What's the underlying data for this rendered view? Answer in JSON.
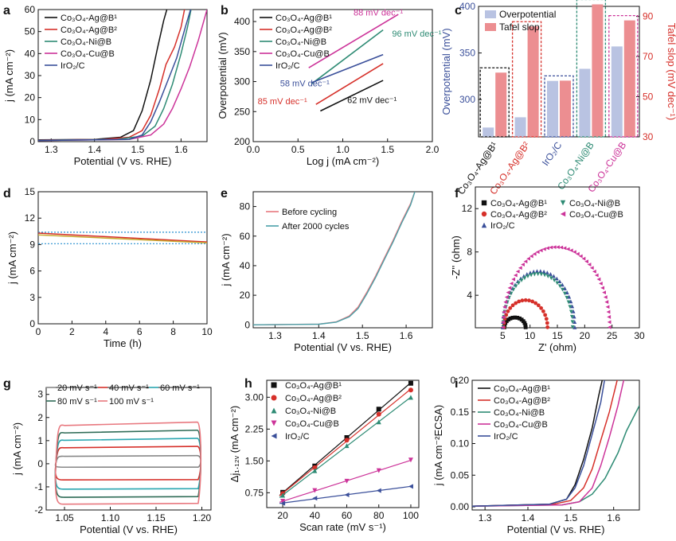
{
  "panel_letters": [
    "a",
    "b",
    "c",
    "d",
    "e",
    "f",
    "g",
    "h",
    "i"
  ],
  "chart_data": [
    {
      "panel": "a",
      "type": "line",
      "xlabel": "Potential (V vs. RHE)",
      "ylabel": "j (mA cm⁻²)",
      "xlim": [
        1.27,
        1.66
      ],
      "ylim": [
        0,
        60
      ],
      "xticks": [
        1.3,
        1.4,
        1.5,
        1.6
      ],
      "yticks": [
        0,
        10,
        20,
        30,
        40,
        50,
        60
      ],
      "legend": "top-left",
      "series": [
        {
          "name": "Co₃O₄-Ag@B¹",
          "color": "#111111",
          "points": [
            [
              1.27,
              0.8
            ],
            [
              1.4,
              1.0
            ],
            [
              1.46,
              2.0
            ],
            [
              1.49,
              5.0
            ],
            [
              1.51,
              14
            ],
            [
              1.53,
              28
            ],
            [
              1.545,
              42
            ],
            [
              1.56,
              55
            ],
            [
              1.57,
              62
            ]
          ]
        },
        {
          "name": "Co₃O₄-Ag@B²",
          "color": "#d6302a",
          "points": [
            [
              1.27,
              0.7
            ],
            [
              1.42,
              1.0
            ],
            [
              1.48,
              2.0
            ],
            [
              1.51,
              5.0
            ],
            [
              1.53,
              12
            ],
            [
              1.55,
              24
            ],
            [
              1.565,
              35
            ],
            [
              1.585,
              43
            ],
            [
              1.6,
              52
            ],
            [
              1.61,
              62
            ]
          ]
        },
        {
          "name": "Co₃O₄-Ni@B",
          "color": "#2e8b74",
          "points": [
            [
              1.27,
              0.6
            ],
            [
              1.45,
              1.0
            ],
            [
              1.51,
              2.5
            ],
            [
              1.54,
              7.0
            ],
            [
              1.56,
              15
            ],
            [
              1.58,
              26
            ],
            [
              1.6,
              40
            ],
            [
              1.615,
              52
            ],
            [
              1.625,
              62
            ]
          ]
        },
        {
          "name": "Co₃O₄-Cu@B",
          "color": "#cc3399",
          "points": [
            [
              1.27,
              0.5
            ],
            [
              1.48,
              1.0
            ],
            [
              1.53,
              3.0
            ],
            [
              1.56,
              8.0
            ],
            [
              1.58,
              15
            ],
            [
              1.6,
              24
            ],
            [
              1.62,
              34
            ],
            [
              1.64,
              46
            ],
            [
              1.66,
              60
            ]
          ]
        },
        {
          "name": "IrO₂/C",
          "color": "#3a4f9a",
          "points": [
            [
              1.27,
              0.5
            ],
            [
              1.48,
              1.0
            ],
            [
              1.51,
              3.0
            ],
            [
              1.53,
              9.0
            ],
            [
              1.55,
              18
            ],
            [
              1.57,
              28
            ],
            [
              1.59,
              38
            ],
            [
              1.61,
              52
            ],
            [
              1.625,
              62
            ]
          ]
        }
      ]
    },
    {
      "panel": "b",
      "type": "line",
      "xlabel": "Log j (mA cm⁻²)",
      "ylabel": "Overpotential (mV)",
      "xlim": [
        0.0,
        2.0
      ],
      "ylim": [
        200,
        420
      ],
      "xticks": [
        0.0,
        0.5,
        1.0,
        1.5,
        2.0
      ],
      "yticks": [
        200,
        250,
        300,
        350,
        400
      ],
      "legend": "top-left",
      "series": [
        {
          "name": "Co₃O₄-Ag@B¹",
          "color": "#111111",
          "x": [
            0.75,
            1.45
          ],
          "y": [
            251,
            302
          ]
        },
        {
          "name": "Co₃O₄-Ag@B²",
          "color": "#d6302a",
          "x": [
            0.7,
            1.45
          ],
          "y": [
            262,
            330
          ]
        },
        {
          "name": "Co₃O₄-Ni@B",
          "color": "#2e8b74",
          "x": [
            0.65,
            1.45
          ],
          "y": [
            296,
            386
          ]
        },
        {
          "name": "Co₃O₄-Cu@B",
          "color": "#cc3399",
          "x": [
            0.62,
            1.62
          ],
          "y": [
            323,
            412
          ]
        },
        {
          "name": "IrO₂/C",
          "color": "#3a4f9a",
          "x": [
            0.65,
            1.45
          ],
          "y": [
            298,
            345
          ]
        }
      ],
      "annotations": [
        {
          "text": "88 mV dec⁻¹",
          "color": "#cc3399",
          "x": 1.12,
          "y": 410
        },
        {
          "text": "96 mV dec⁻¹",
          "color": "#2e8b74",
          "x": 1.55,
          "y": 375
        },
        {
          "text": "58 mV dec⁻¹",
          "color": "#3a4f9a",
          "x": 0.3,
          "y": 292
        },
        {
          "text": "85 mV dec⁻¹",
          "color": "#d6302a",
          "x": 0.05,
          "y": 262
        },
        {
          "text": "62 mV dec⁻¹",
          "color": "#111111",
          "x": 1.05,
          "y": 264
        }
      ]
    },
    {
      "panel": "c",
      "type": "bar",
      "categories": [
        "Co₃O₄-Ag@B¹",
        "Co₃O₄-Ag@B²",
        "IrO₂/C",
        "Co₃O₄-Ni@B",
        "Co₃O₄-Cu@B"
      ],
      "category_colors": [
        "#111111",
        "#d6302a",
        "#3a4f9a",
        "#2e8b74",
        "#cc3399"
      ],
      "ylabel": "Overpotential (mV)",
      "y2label": "Tafel slop (mV dec⁻¹)",
      "ylim": [
        260,
        400
      ],
      "yticks": [
        300,
        350,
        400
      ],
      "y2lim": [
        30,
        95
      ],
      "y2ticks": [
        30,
        50,
        70,
        90
      ],
      "legend": "top-left",
      "series": [
        {
          "name": "Overpotential",
          "axis": "left",
          "color": "#b9c3e2",
          "values": [
            270,
            281,
            320,
            333,
            357
          ]
        },
        {
          "name": "Tafel slop",
          "axis": "right",
          "color": "#ec8e91",
          "values": [
            62,
            85,
            58,
            96,
            88
          ]
        }
      ]
    },
    {
      "panel": "d",
      "type": "line",
      "xlabel": "Time (h)",
      "ylabel": "j (mA cm⁻²)",
      "xlim": [
        0,
        10
      ],
      "ylim": [
        0,
        15
      ],
      "xticks": [
        0,
        2,
        4,
        6,
        8,
        10
      ],
      "yticks": [
        0,
        3,
        6,
        9,
        12,
        15
      ],
      "series": [
        {
          "color": "#d6302a",
          "x": [
            0,
            10
          ],
          "y": [
            10.3,
            9.3
          ]
        },
        {
          "color": "#c8a830",
          "x": [
            0,
            10
          ],
          "y": [
            10.1,
            9.2
          ]
        }
      ],
      "reference_lines": [
        10.4,
        9.1
      ]
    },
    {
      "panel": "e",
      "type": "line",
      "xlabel": "Potential (V vs. RHE)",
      "ylabel": "j (mA cm⁻²)",
      "xlim": [
        1.25,
        1.66
      ],
      "ylim": [
        -2,
        90
      ],
      "xticks": [
        1.3,
        1.4,
        1.5,
        1.6
      ],
      "yticks": [
        0,
        20,
        40,
        60,
        80
      ],
      "legend": "top-left",
      "series": [
        {
          "name": "Before cycling",
          "color": "#e8787f",
          "points": [
            [
              1.25,
              0
            ],
            [
              1.4,
              0.5
            ],
            [
              1.44,
              2
            ],
            [
              1.47,
              6
            ],
            [
              1.49,
              12
            ],
            [
              1.51,
              22
            ],
            [
              1.53,
              33
            ],
            [
              1.55,
              45
            ],
            [
              1.57,
              57
            ],
            [
              1.59,
              70
            ],
            [
              1.61,
              82
            ],
            [
              1.62,
              90
            ]
          ]
        },
        {
          "name": "After 2000 cycles",
          "color": "#4aa0a8",
          "points": [
            [
              1.25,
              0
            ],
            [
              1.4,
              0.4
            ],
            [
              1.44,
              1.8
            ],
            [
              1.47,
              5.5
            ],
            [
              1.49,
              11
            ],
            [
              1.51,
              21
            ],
            [
              1.53,
              32
            ],
            [
              1.55,
              44
            ],
            [
              1.57,
              56
            ],
            [
              1.59,
              69
            ],
            [
              1.61,
              81
            ],
            [
              1.62,
              90
            ]
          ]
        }
      ]
    },
    {
      "panel": "f",
      "type": "scatter",
      "xlabel": "Z' (ohm)",
      "ylabel": "-Z'' (ohm)",
      "xlim": [
        0,
        30
      ],
      "ylim": [
        1,
        14
      ],
      "xticks": [
        5,
        10,
        15,
        20,
        25,
        30
      ],
      "yticks": [
        4,
        8,
        12
      ],
      "legend": "top",
      "series": [
        {
          "name": "Co₃O₄-Ag@B¹",
          "color": "#111111",
          "marker": "square",
          "arc": {
            "start": 5.3,
            "end": 9.2,
            "peak": 1.9
          }
        },
        {
          "name": "Co₃O₄-Ag@B²",
          "color": "#d6302a",
          "marker": "circle",
          "arc": {
            "start": 5.2,
            "end": 13.2,
            "peak": 3.5
          }
        },
        {
          "name": "IrO₂/C",
          "color": "#3a4f9a",
          "marker": "triangle",
          "arc": {
            "start": 5.0,
            "end": 18.2,
            "peak": 6.2
          }
        },
        {
          "name": "Co₃O₄-Ni@B",
          "color": "#2e8b74",
          "marker": "triangle-down",
          "arc": {
            "start": 5.1,
            "end": 17.8,
            "peak": 5.9
          }
        },
        {
          "name": "Co₃O₄-Cu@B",
          "color": "#cc3399",
          "marker": "triangle-left",
          "arc": {
            "start": 5.0,
            "end": 24.5,
            "peak": 8.4
          }
        }
      ]
    },
    {
      "panel": "g",
      "type": "line",
      "xlabel": "Potential (V vs. RHE)",
      "ylabel": "j (mA cm⁻²)",
      "xlim": [
        1.03,
        1.21
      ],
      "ylim": [
        -2,
        3.3
      ],
      "xticks": [
        1.05,
        1.1,
        1.15,
        1.2
      ],
      "yticks": [
        -2,
        -1,
        0,
        1,
        2,
        3
      ],
      "legend": "top",
      "series": [
        {
          "name": "20 mV s⁻¹",
          "color": "#888888",
          "upper": 0.35,
          "lower": -0.15
        },
        {
          "name": "40 mV s⁻¹",
          "color": "#d6302a",
          "upper": 0.75,
          "lower": -0.7
        },
        {
          "name": "60 mV s⁻¹",
          "color": "#2aa6b0",
          "upper": 1.1,
          "lower": -1.1
        },
        {
          "name": "80 mV s⁻¹",
          "color": "#2e6b56",
          "upper": 1.45,
          "lower": -1.45
        },
        {
          "name": "100 mV s⁻¹",
          "color": "#e8787f",
          "upper": 1.8,
          "lower": -1.75
        }
      ]
    },
    {
      "panel": "h",
      "type": "scatter",
      "xlabel": "Scan rate (mV s⁻¹)",
      "ylabel": "Δj₁.₁₂ᵥ (mA cm⁻²)",
      "xlim": [
        10,
        105
      ],
      "ylim": [
        0.4,
        3.4
      ],
      "xticks": [
        20,
        40,
        60,
        80,
        100
      ],
      "yticks": [
        0.75,
        1.5,
        2.25,
        3.0
      ],
      "legend": "top-left",
      "x": [
        20,
        40,
        60,
        80,
        100
      ],
      "series": [
        {
          "name": "Co₃O₄-Ag@B¹",
          "color": "#111111",
          "marker": "square",
          "values": [
            0.76,
            1.38,
            2.05,
            2.72,
            3.33
          ]
        },
        {
          "name": "Co₃O₄-Ag@B²",
          "color": "#d6302a",
          "marker": "circle",
          "values": [
            0.73,
            1.34,
            1.99,
            2.6,
            3.17
          ]
        },
        {
          "name": "Co₃O₄-Ni@B",
          "color": "#2e8b74",
          "marker": "triangle",
          "values": [
            0.69,
            1.27,
            1.86,
            2.42,
            3.0
          ]
        },
        {
          "name": "Co₃O₄-Cu@B",
          "color": "#cc3399",
          "marker": "triangle-down",
          "values": [
            0.55,
            0.8,
            1.02,
            1.27,
            1.52
          ]
        },
        {
          "name": "IrO₂/C",
          "color": "#3a4f9a",
          "marker": "triangle-left",
          "values": [
            0.5,
            0.62,
            0.7,
            0.8,
            0.9
          ]
        }
      ]
    },
    {
      "panel": "i",
      "type": "line",
      "xlabel": "Potential (V vs. RHE)",
      "ylabel": "j (mA cm⁻²ECSA)",
      "xlim": [
        1.27,
        1.66
      ],
      "ylim": [
        -0.005,
        0.2
      ],
      "xticks": [
        1.3,
        1.4,
        1.5,
        1.6
      ],
      "yticks": [
        0.0,
        0.05,
        0.1,
        0.15,
        0.2
      ],
      "legend": "top-left",
      "series": [
        {
          "name": "Co₃O₄-Ag@B¹",
          "color": "#111111",
          "points": [
            [
              1.27,
              0.001
            ],
            [
              1.45,
              0.004
            ],
            [
              1.49,
              0.012
            ],
            [
              1.51,
              0.035
            ],
            [
              1.53,
              0.075
            ],
            [
              1.55,
              0.125
            ],
            [
              1.565,
              0.175
            ],
            [
              1.575,
              0.205
            ]
          ]
        },
        {
          "name": "Co₃O₄-Ag@B²",
          "color": "#d6302a",
          "points": [
            [
              1.27,
              0.001
            ],
            [
              1.46,
              0.004
            ],
            [
              1.5,
              0.01
            ],
            [
              1.53,
              0.03
            ],
            [
              1.55,
              0.06
            ],
            [
              1.57,
              0.105
            ],
            [
              1.59,
              0.15
            ],
            [
              1.61,
              0.205
            ]
          ]
        },
        {
          "name": "Co₃O₄-Ni@B",
          "color": "#2e8b74",
          "points": [
            [
              1.27,
              0.001
            ],
            [
              1.48,
              0.003
            ],
            [
              1.52,
              0.008
            ],
            [
              1.55,
              0.02
            ],
            [
              1.58,
              0.045
            ],
            [
              1.61,
              0.085
            ],
            [
              1.63,
              0.12
            ],
            [
              1.66,
              0.16
            ]
          ]
        },
        {
          "name": "Co₃O₄-Cu@B",
          "color": "#cc3399",
          "points": [
            [
              1.27,
              0.001
            ],
            [
              1.48,
              0.003
            ],
            [
              1.52,
              0.008
            ],
            [
              1.55,
              0.03
            ],
            [
              1.57,
              0.065
            ],
            [
              1.59,
              0.11
            ],
            [
              1.61,
              0.16
            ],
            [
              1.625,
              0.205
            ]
          ]
        },
        {
          "name": "IrO₂/C",
          "color": "#3a4f9a",
          "points": [
            [
              1.27,
              0.001
            ],
            [
              1.45,
              0.004
            ],
            [
              1.49,
              0.012
            ],
            [
              1.51,
              0.03
            ],
            [
              1.53,
              0.065
            ],
            [
              1.55,
              0.115
            ],
            [
              1.57,
              0.165
            ],
            [
              1.58,
              0.205
            ]
          ]
        }
      ]
    }
  ]
}
